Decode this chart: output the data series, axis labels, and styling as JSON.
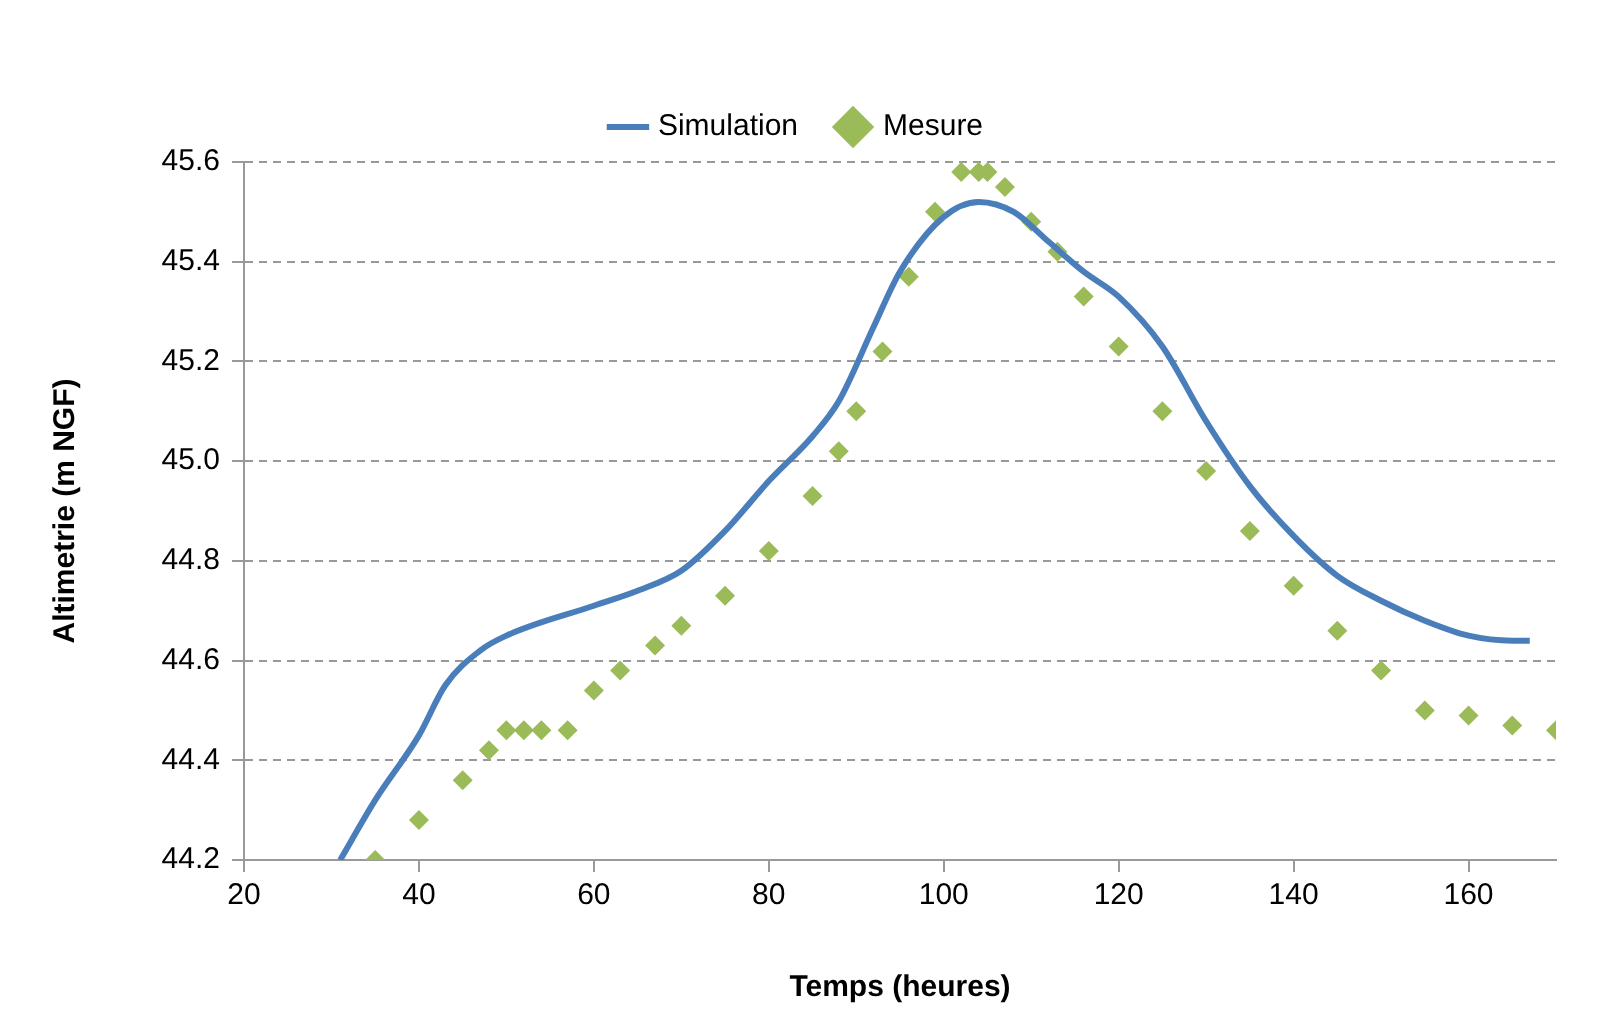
{
  "chart_data": {
    "type": "line",
    "xlabel": "Temps (heures)",
    "ylabel": "Altimetrie (m NGF)",
    "xlim": [
      20,
      170
    ],
    "xticks": [
      20,
      40,
      60,
      80,
      100,
      120,
      140,
      160
    ],
    "ylim": [
      44.2,
      45.6
    ],
    "yticks": [
      44.2,
      44.4,
      44.6,
      44.8,
      {
        "value": 45,
        "label": "45.0"
      },
      45.2,
      45.4,
      45.6
    ],
    "grid": "y",
    "legend": "top",
    "series": [
      {
        "name": "Simulation",
        "color": "#4a7ebb",
        "marker": "none",
        "x": [
          31,
          35,
          40,
          43,
          47,
          50,
          60,
          65,
          70,
          75,
          80,
          85,
          88,
          92,
          95,
          100,
          104,
          108,
          112,
          116,
          120,
          125,
          130,
          135,
          140,
          145,
          150,
          155,
          160,
          165,
          167
        ],
        "values": [
          44.2,
          44.32,
          44.45,
          44.55,
          44.62,
          44.65,
          44.71,
          44.74,
          44.78,
          44.86,
          44.96,
          45.05,
          45.12,
          45.27,
          45.38,
          45.49,
          45.52,
          45.5,
          45.44,
          45.38,
          45.33,
          45.23,
          45.08,
          44.95,
          44.85,
          44.77,
          44.72,
          44.68,
          44.65,
          44.64,
          44.64
        ]
      },
      {
        "name": "Mesure",
        "type": "scatter",
        "color": "#9bbb59",
        "marker": "diamond",
        "x": [
          35,
          40,
          45,
          48,
          50,
          52,
          54,
          57,
          60,
          63,
          67,
          70,
          75,
          80,
          85,
          88,
          90,
          93,
          96,
          99,
          102,
          104,
          105,
          107,
          110,
          113,
          116,
          120,
          125,
          130,
          135,
          140,
          145,
          150,
          155,
          160,
          165,
          170
        ],
        "values": [
          44.2,
          44.28,
          44.36,
          44.42,
          44.46,
          44.46,
          44.46,
          44.46,
          44.54,
          44.58,
          44.63,
          44.67,
          44.73,
          44.82,
          44.93,
          45.02,
          45.1,
          45.22,
          45.37,
          45.5,
          45.58,
          45.58,
          45.58,
          45.55,
          45.48,
          45.42,
          45.33,
          45.23,
          45.1,
          44.98,
          44.86,
          44.75,
          44.66,
          44.58,
          44.5,
          44.49,
          44.47,
          44.46
        ]
      }
    ]
  }
}
